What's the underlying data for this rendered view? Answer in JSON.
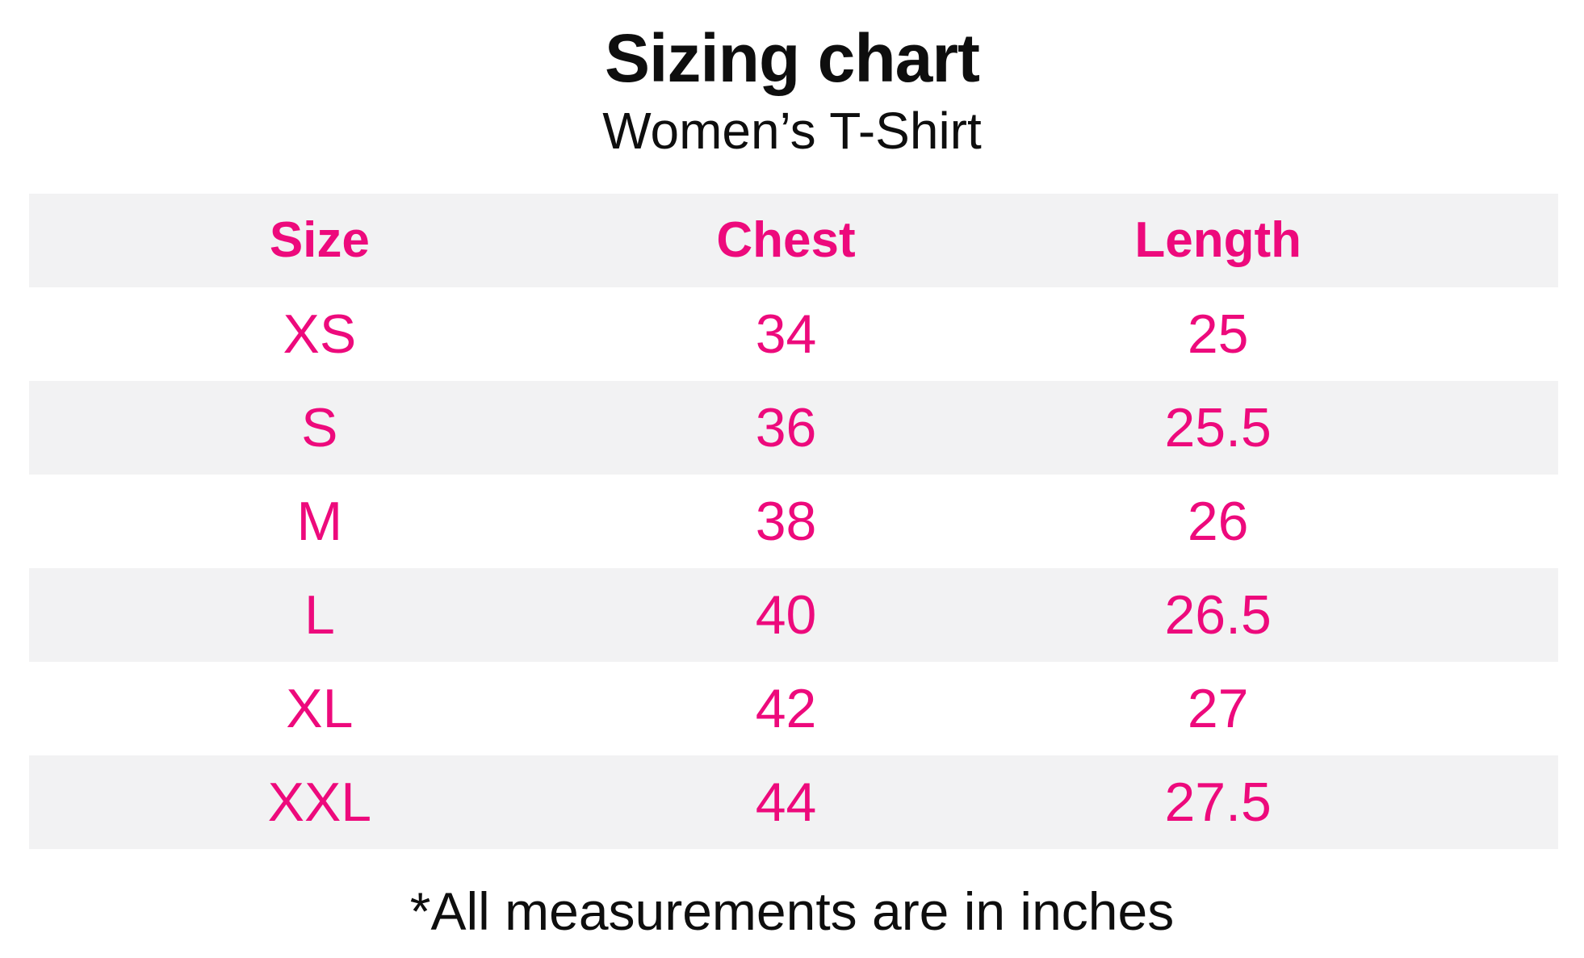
{
  "header": {
    "title": "Sizing chart",
    "subtitle": "Women’s T-Shirt"
  },
  "footnote": "*All measurements are in inches",
  "chart_data": {
    "type": "table",
    "title": "Sizing chart",
    "subtitle": "Women’s T-Shirt",
    "columns": [
      "Size",
      "Chest",
      "Length"
    ],
    "rows": [
      [
        "XS",
        "34",
        "25"
      ],
      [
        "S",
        "36",
        "25.5"
      ],
      [
        "M",
        "38",
        "26"
      ],
      [
        "L",
        "40",
        "26.5"
      ],
      [
        "XL",
        "42",
        "27"
      ],
      [
        "XXL",
        "44",
        "27.5"
      ]
    ],
    "units": "inches",
    "note": "*All measurements are in inches"
  },
  "colors": {
    "accent_pink": "#ed0a7c",
    "row_alt_gray": "#f2f2f3",
    "text_black": "#0e0e0e"
  }
}
